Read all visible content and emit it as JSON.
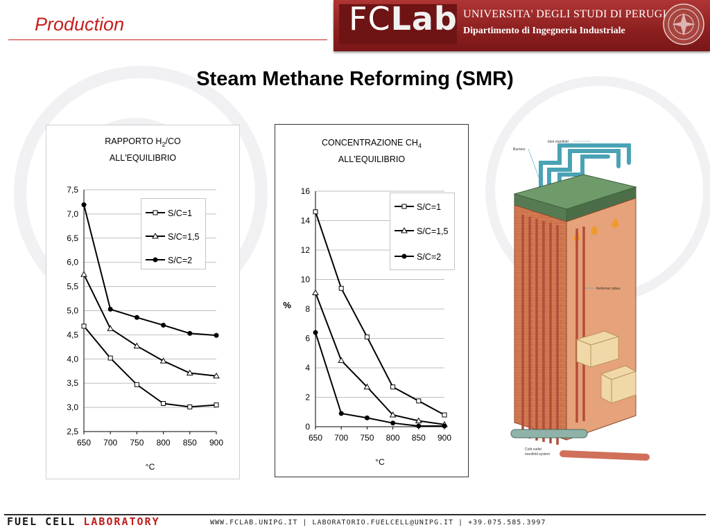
{
  "header": {
    "section": "Production",
    "logo_fc": "FC",
    "logo_lab": "Lab",
    "university": "UNIVERSITA' DEGLI STUDI DI PERUGIA",
    "department": "Dipartimento di Ingegneria Industriale"
  },
  "slide": {
    "title": "Steam Methane Reforming (SMR)"
  },
  "chart1": {
    "title_main": "RAPPORTO H",
    "title_sub": "2",
    "title_tail": "/CO",
    "title_line2": "ALL'EQUILIBRIO",
    "xlabel": "°C",
    "legend": [
      "S/C=1",
      "S/C=1,5",
      "S/C=2"
    ]
  },
  "chart2": {
    "title_main": "CONCENTRAZIONE CH",
    "title_sub": "4",
    "title_line2": "ALL'EQUILIBRIO",
    "ylabel": "%",
    "xlabel": "°C",
    "legend": [
      "S/C=1",
      "S/C=1,5",
      "S/C=2"
    ]
  },
  "chart_data": [
    {
      "type": "line",
      "title": "RAPPORTO H2/CO ALL'EQUILIBRIO",
      "xlabel": "°C",
      "ylabel": "",
      "x": [
        650,
        700,
        750,
        800,
        850,
        900
      ],
      "ylim": [
        2.5,
        7.5
      ],
      "yticks": [
        "2,5",
        "3,0",
        "3,5",
        "4,0",
        "4,5",
        "5,0",
        "5,5",
        "6,0",
        "6,5",
        "7,0",
        "7,5"
      ],
      "grid": true,
      "legend_position": "top-right",
      "series": [
        {
          "name": "S/C=1",
          "marker": "square",
          "values": [
            4.68,
            4.02,
            3.47,
            3.08,
            3.01,
            3.05
          ]
        },
        {
          "name": "S/C=1,5",
          "marker": "triangle",
          "values": [
            5.75,
            4.63,
            4.27,
            3.96,
            3.71,
            3.65
          ]
        },
        {
          "name": "S/C=2",
          "marker": "circle",
          "values": [
            7.19,
            5.03,
            4.86,
            4.7,
            4.53,
            4.49
          ]
        }
      ]
    },
    {
      "type": "line",
      "title": "CONCENTRAZIONE CH4 ALL'EQUILIBRIO",
      "xlabel": "°C",
      "ylabel": "%",
      "x": [
        650,
        700,
        750,
        800,
        850,
        900
      ],
      "ylim": [
        0,
        16
      ],
      "yticks": [
        "0",
        "2",
        "4",
        "6",
        "8",
        "10",
        "12",
        "14",
        "16"
      ],
      "grid": true,
      "legend_position": "top-right",
      "series": [
        {
          "name": "S/C=1",
          "marker": "square",
          "values": [
            14.6,
            9.4,
            6.1,
            2.7,
            1.75,
            0.8
          ]
        },
        {
          "name": "S/C=1,5",
          "marker": "triangle",
          "values": [
            9.1,
            4.5,
            2.7,
            0.8,
            0.4,
            0.15
          ]
        },
        {
          "name": "S/C=2",
          "marker": "circle",
          "values": [
            6.4,
            0.9,
            0.6,
            0.25,
            0.05,
            0.05
          ]
        }
      ]
    }
  ],
  "diagram": {
    "labels": {
      "inlet": "Inlet manifold",
      "burners": "Burners",
      "tubes": "Reformer tubes",
      "outlet1": "Cold outlet",
      "outlet2": "manifold system"
    }
  },
  "footer": {
    "brand_a": "FUEL CELL ",
    "brand_b": "LABORATORY",
    "contact": "WWW.FCLAB.UNIPG.IT | LABORATORIO.FUELCELL@UNIPG.IT | +39.075.585.3997"
  },
  "colors": {
    "accent_red": "#c81e1e",
    "banner_red": "#8c1f1f",
    "tube": "#d0705a",
    "brick": "#d27a52"
  }
}
